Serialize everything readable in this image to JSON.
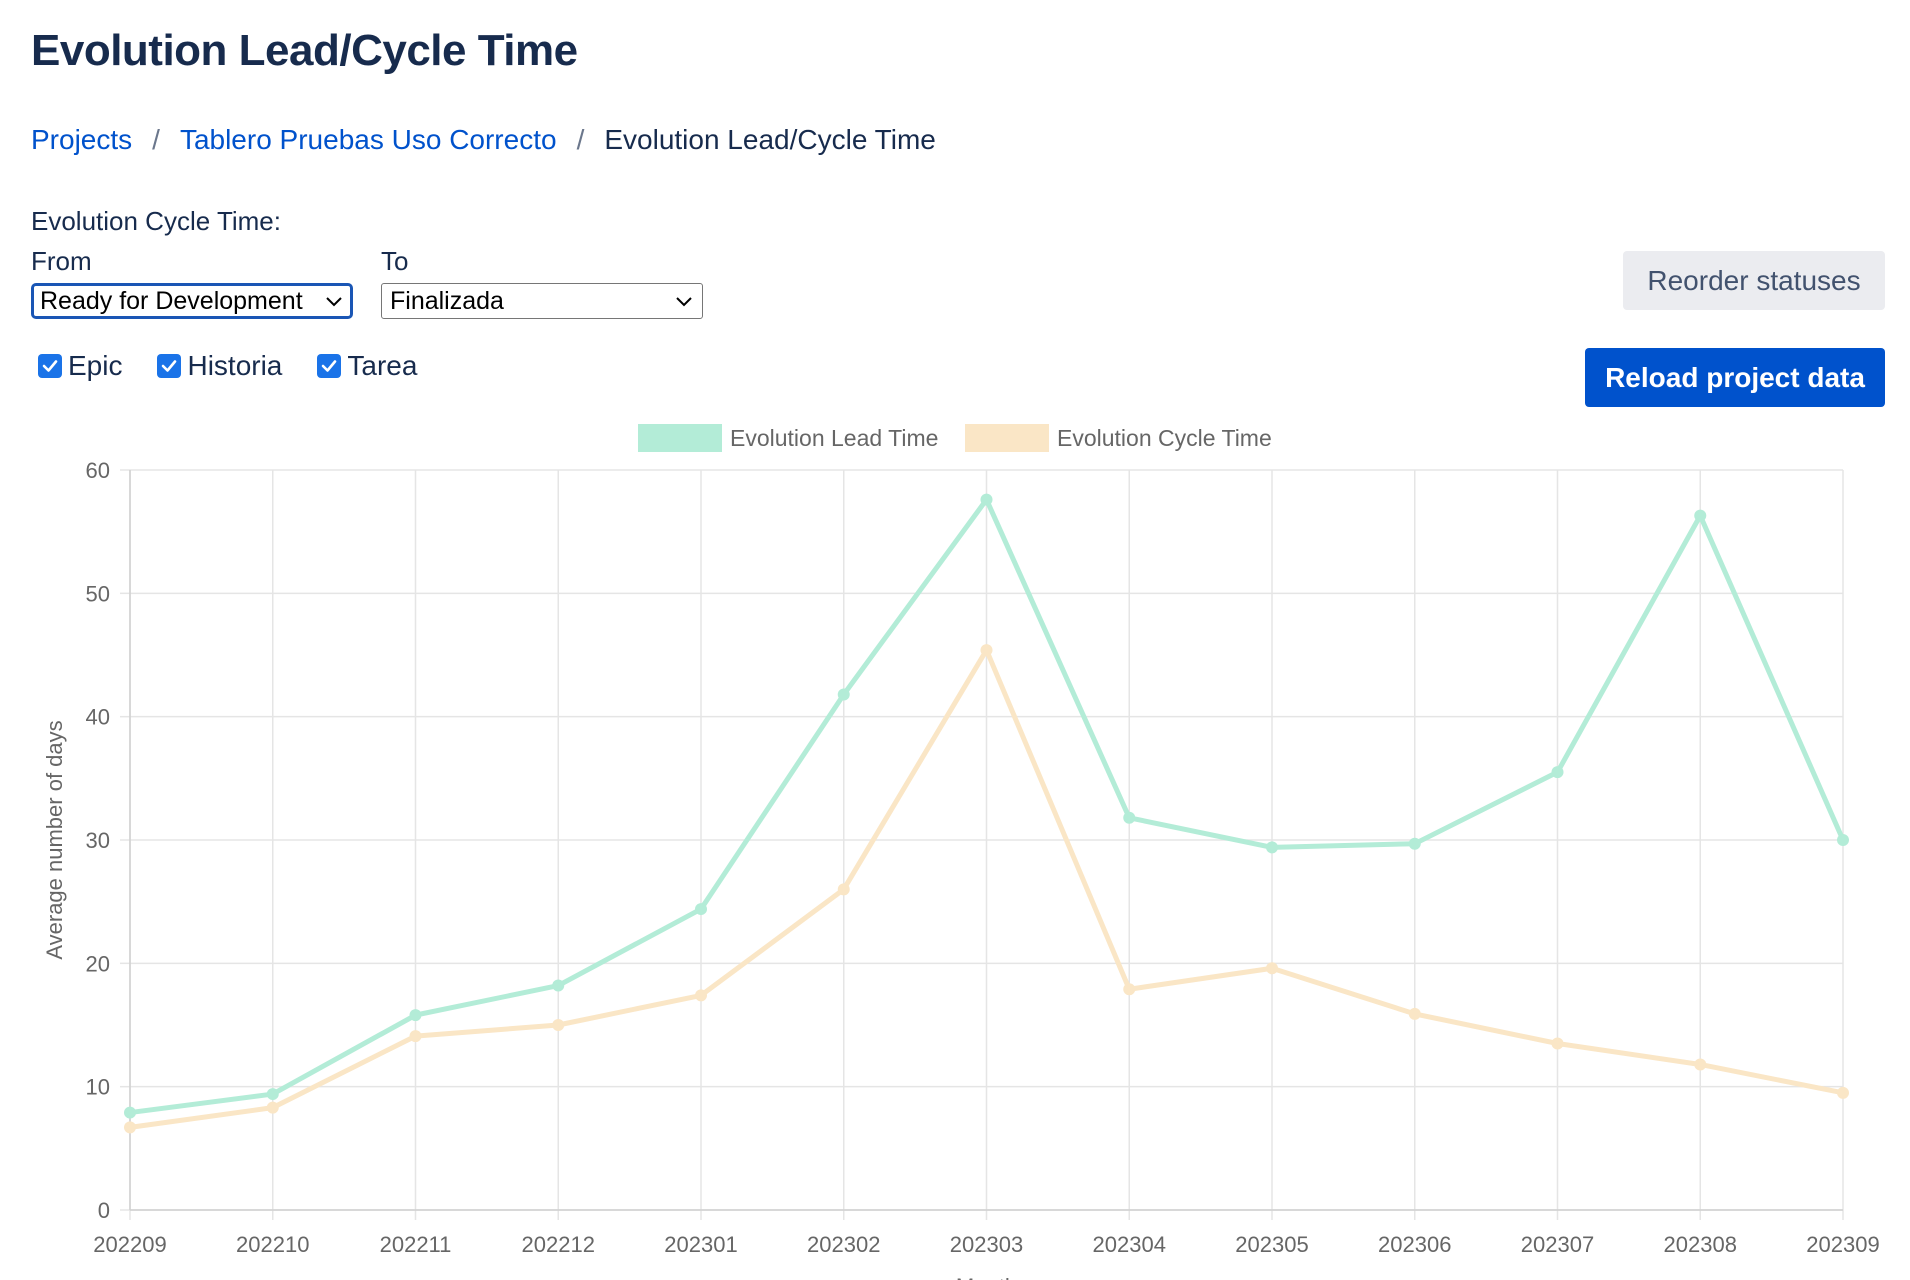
{
  "page": {
    "title": "Evolution Lead/Cycle Time"
  },
  "breadcrumb": {
    "items": [
      "Projects",
      "Tablero Pruebas Uso Correcto"
    ],
    "current": "Evolution Lead/Cycle Time",
    "separator": "/"
  },
  "filters": {
    "section_label": "Evolution Cycle Time:",
    "from_label": "From",
    "from_value": "Ready for Development",
    "to_label": "To",
    "to_value": "Finalizada"
  },
  "issue_types": [
    {
      "label": "Epic",
      "checked": true
    },
    {
      "label": "Historia",
      "checked": true
    },
    {
      "label": "Tarea",
      "checked": true
    }
  ],
  "buttons": {
    "reorder_label": "Reorder statuses",
    "reload_label": "Reload project data"
  },
  "chart_data": {
    "type": "line",
    "categories": [
      "202209",
      "202210",
      "202211",
      "202212",
      "202301",
      "202302",
      "202303",
      "202304",
      "202305",
      "202306",
      "202307",
      "202308",
      "202309"
    ],
    "series": [
      {
        "name": "Evolution Lead Time",
        "color": "#b3ecd7",
        "values": [
          7.9,
          9.4,
          15.8,
          18.2,
          24.4,
          41.8,
          57.6,
          31.8,
          29.4,
          29.7,
          35.5,
          56.3,
          30.0
        ]
      },
      {
        "name": "Evolution Cycle Time",
        "color": "#fae6c6",
        "values": [
          6.7,
          8.3,
          14.1,
          15.0,
          17.4,
          26.0,
          45.4,
          17.9,
          19.6,
          15.9,
          13.5,
          11.8,
          9.5
        ]
      }
    ],
    "xlabel": "Month",
    "ylabel": "Average number of days",
    "ylim": [
      0,
      60
    ],
    "yticks": [
      0,
      10,
      20,
      30,
      40,
      50,
      60
    ],
    "grid": true,
    "legend_position": "top-center"
  }
}
